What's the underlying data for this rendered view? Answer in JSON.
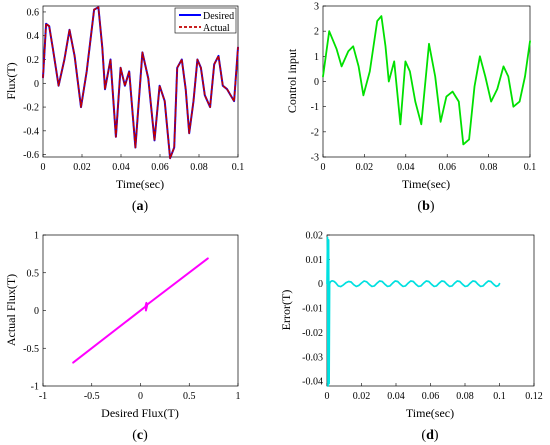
{
  "chart_data": [
    {
      "type": "line",
      "panel": "a",
      "panel_label": "a",
      "xlabel": "Time(sec)",
      "ylabel": "Flux(T)",
      "xlim": [
        0,
        0.1
      ],
      "ylim": [
        -0.62,
        0.65
      ],
      "xticks": [
        "0",
        "0.02",
        "0.04",
        "0.06",
        "0.08",
        "0.1"
      ],
      "yticks": [
        "-0.6",
        "-0.4",
        "-0.2",
        "0",
        "0.2",
        "0.4",
        "0.6"
      ],
      "legend": "top-right",
      "series": [
        {
          "name": "Desired",
          "color": "#0000ff",
          "dash": "",
          "x": [
            0.0,
            0.0016,
            0.0032,
            0.0052,
            0.008,
            0.011,
            0.0136,
            0.0162,
            0.0195,
            0.0224,
            0.0262,
            0.0284,
            0.0304,
            0.0318,
            0.0346,
            0.0374,
            0.0398,
            0.042,
            0.0442,
            0.0474,
            0.051,
            0.054,
            0.0572,
            0.0598,
            0.0624,
            0.0652,
            0.0673,
            0.0688,
            0.0712,
            0.0732,
            0.075,
            0.0772,
            0.0792,
            0.081,
            0.083,
            0.0857,
            0.0878,
            0.09,
            0.0922,
            0.0944,
            0.0962,
            0.098,
            0.1
          ],
          "y": [
            0.05,
            0.5,
            0.48,
            0.28,
            -0.02,
            0.2,
            0.45,
            0.23,
            -0.2,
            0.1,
            0.62,
            0.64,
            0.3,
            -0.05,
            0.2,
            -0.45,
            0.13,
            -0.02,
            0.1,
            -0.54,
            0.26,
            0.04,
            -0.48,
            -0.02,
            -0.15,
            -0.63,
            -0.54,
            0.13,
            0.2,
            -0.05,
            -0.42,
            -0.15,
            0.2,
            0.13,
            -0.1,
            -0.2,
            0.16,
            0.23,
            -0.02,
            -0.05,
            -0.1,
            -0.15,
            0.3
          ]
        },
        {
          "name": "Actual",
          "color": "#c00000",
          "dash": "3,2",
          "x": [
            0.0,
            0.0016,
            0.0032,
            0.0052,
            0.008,
            0.011,
            0.0136,
            0.0162,
            0.0195,
            0.0224,
            0.0262,
            0.0284,
            0.0304,
            0.0318,
            0.0346,
            0.0374,
            0.0398,
            0.042,
            0.0442,
            0.0474,
            0.051,
            0.054,
            0.0572,
            0.0598,
            0.0624,
            0.0652,
            0.0673,
            0.0688,
            0.0712,
            0.0732,
            0.075,
            0.0772,
            0.0792,
            0.081,
            0.083,
            0.0857,
            0.0878,
            0.09,
            0.0922,
            0.0944,
            0.0962,
            0.098,
            0.1
          ],
          "y": [
            0.05,
            0.5,
            0.48,
            0.28,
            -0.02,
            0.2,
            0.45,
            0.23,
            -0.2,
            0.1,
            0.62,
            0.64,
            0.3,
            -0.05,
            0.2,
            -0.45,
            0.13,
            -0.02,
            0.1,
            -0.54,
            0.26,
            0.04,
            -0.48,
            -0.02,
            -0.15,
            -0.63,
            -0.54,
            0.13,
            0.2,
            -0.05,
            -0.42,
            -0.15,
            0.2,
            0.13,
            -0.1,
            -0.2,
            0.16,
            0.23,
            -0.02,
            -0.05,
            -0.1,
            -0.15,
            0.3
          ]
        }
      ]
    },
    {
      "type": "line",
      "panel": "b",
      "panel_label": "b",
      "xlabel": "Time(sec)",
      "ylabel": "Control input",
      "xlim": [
        0,
        0.1
      ],
      "ylim": [
        -3,
        3
      ],
      "xticks": [
        "0",
        "0.02",
        "0.04",
        "0.06",
        "0.08",
        "0.1"
      ],
      "yticks": [
        "-3",
        "-2",
        "-1",
        "0",
        "1",
        "2",
        "3"
      ],
      "series": [
        {
          "color": "#00e000",
          "x": [
            0.0,
            0.003,
            0.0065,
            0.009,
            0.0122,
            0.0146,
            0.0172,
            0.0195,
            0.0226,
            0.0262,
            0.0282,
            0.0302,
            0.0318,
            0.0344,
            0.0374,
            0.0398,
            0.042,
            0.0446,
            0.0475,
            0.0512,
            0.0542,
            0.0568,
            0.0596,
            0.0626,
            0.0656,
            0.0678,
            0.0706,
            0.0732,
            0.0758,
            0.0784,
            0.0812,
            0.0842,
            0.0872,
            0.0895,
            0.092,
            0.095,
            0.0976,
            0.1
          ],
          "y": [
            0.2,
            2.0,
            1.3,
            0.6,
            1.2,
            1.4,
            0.6,
            -0.55,
            0.4,
            2.4,
            2.6,
            1.4,
            0.0,
            0.8,
            -1.7,
            0.8,
            0.4,
            -0.8,
            -1.7,
            1.5,
            0.2,
            -1.6,
            -0.6,
            -0.4,
            -0.8,
            -2.5,
            -2.3,
            -0.2,
            1.0,
            0.2,
            -0.8,
            -0.3,
            0.6,
            0.2,
            -1.0,
            -0.8,
            0.2,
            1.6
          ]
        }
      ]
    },
    {
      "type": "line",
      "panel": "c",
      "panel_label": "c",
      "xlabel": "Desired Flux(T)",
      "ylabel": "Actual Flux(T)",
      "xlim": [
        -1,
        1
      ],
      "ylim": [
        -1,
        1
      ],
      "xticks": [
        "-1",
        "-0.5",
        "0",
        "0.5",
        "1"
      ],
      "yticks": [
        "-1",
        "-0.5",
        "0",
        "0.5",
        "1"
      ],
      "series": [
        {
          "color": "#ff00ff",
          "x": [
            -0.69,
            0.05,
            0.06,
            0.055,
            0.07,
            0.69
          ],
          "y": [
            -0.69,
            0.05,
            0.1,
            0.0,
            0.08,
            0.69
          ]
        }
      ]
    },
    {
      "type": "line",
      "panel": "d",
      "panel_label": "d",
      "xlabel": "Time(sec)",
      "ylabel": "Error(T)",
      "xlim": [
        0,
        0.12
      ],
      "ylim": [
        -0.042,
        0.02
      ],
      "xticks": [
        "0",
        "0.02",
        "0.04",
        "0.06",
        "0.08",
        "0.1",
        "0.12"
      ],
      "yticks": [
        "-0.04",
        "-0.03",
        "-0.02",
        "-0.01",
        "0",
        "0.01",
        "0.02"
      ],
      "series": [
        {
          "color": "#00e0e0",
          "x": [
            0.0,
            0.0003,
            0.0006,
            0.0009,
            0.0012,
            0.0015,
            0.002,
            0.003,
            0.004,
            0.005,
            0.0065,
            0.008,
            0.0095,
            0.011,
            0.0125,
            0.014,
            0.0155,
            0.017,
            0.0185,
            0.02,
            0.0215,
            0.023,
            0.0245,
            0.026,
            0.0275,
            0.029,
            0.0305,
            0.032,
            0.0335,
            0.035,
            0.0365,
            0.038,
            0.0395,
            0.041,
            0.0425,
            0.044,
            0.0455,
            0.047,
            0.0485,
            0.05,
            0.0515,
            0.053,
            0.0545,
            0.056,
            0.0575,
            0.059,
            0.0605,
            0.062,
            0.0635,
            0.065,
            0.0665,
            0.068,
            0.0695,
            0.071,
            0.0725,
            0.074,
            0.0755,
            0.077,
            0.0785,
            0.08,
            0.0815,
            0.083,
            0.0845,
            0.086,
            0.0875,
            0.089,
            0.0905,
            0.092,
            0.0935,
            0.095,
            0.0965,
            0.098,
            0.0995,
            0.1
          ],
          "y": [
            0.0,
            0.019,
            -0.042,
            0.018,
            -0.041,
            0.0,
            0.0008,
            0.0012,
            0.001,
            0.0004,
            -0.0009,
            -0.0012,
            -0.0005,
            0.0004,
            0.0009,
            0.0007,
            -0.0004,
            -0.0011,
            -0.0007,
            0.0003,
            0.0011,
            0.0008,
            -0.0003,
            -0.0011,
            -0.0009,
            0.0002,
            0.0011,
            0.0009,
            -0.0002,
            -0.0011,
            -0.0009,
            0.0002,
            0.0011,
            0.0009,
            -0.0002,
            -0.0011,
            -0.0009,
            0.0002,
            0.0011,
            0.0009,
            -0.0002,
            -0.0011,
            -0.0009,
            0.0002,
            0.0011,
            0.0009,
            -0.0002,
            -0.0011,
            -0.0009,
            0.0002,
            0.0011,
            0.0009,
            -0.0002,
            -0.0011,
            -0.0009,
            0.0002,
            0.0011,
            0.0009,
            -0.0002,
            -0.0011,
            -0.0009,
            0.0002,
            0.0011,
            0.0009,
            -0.0002,
            -0.0011,
            -0.0009,
            0.0002,
            0.0011,
            0.0009,
            -0.0002,
            -0.0011,
            -0.0007,
            0.0
          ]
        }
      ]
    }
  ]
}
